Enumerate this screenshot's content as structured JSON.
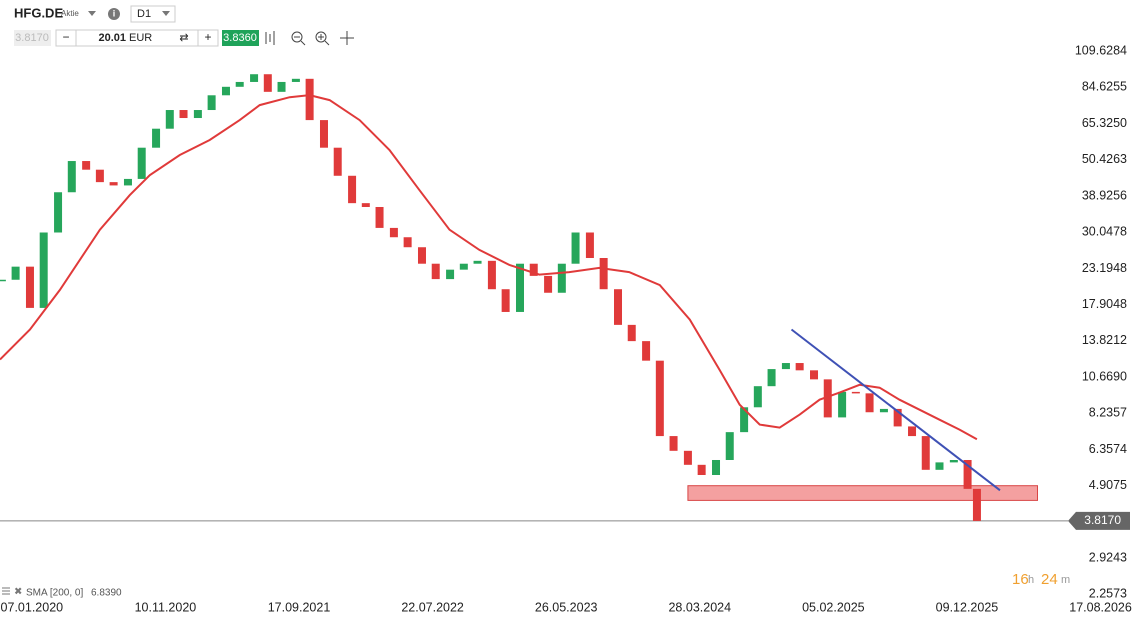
{
  "header": {
    "symbol": "HFG.DE",
    "kind": "Aktie",
    "timeframe": "D1",
    "bid": "3.8170",
    "volume": "20.01",
    "currency": "EUR",
    "ask": "3.8360"
  },
  "chart_data": {
    "type": "candlestick",
    "x": [
      -48,
      -26,
      -3,
      19,
      42,
      64,
      87,
      109,
      131,
      154,
      176,
      199,
      221,
      243,
      266,
      288,
      311,
      333,
      356,
      378,
      400,
      423,
      445,
      468,
      490,
      513,
      535,
      557,
      580,
      602,
      625,
      647,
      670,
      692,
      714,
      737,
      759,
      782,
      804,
      827,
      849,
      871,
      894,
      916,
      939,
      961,
      984,
      1006,
      1028,
      1051,
      1073,
      1096,
      1118,
      1141,
      1163,
      1185,
      1208,
      1230,
      1253,
      1275,
      1298,
      1320,
      1342,
      1365,
      1387,
      1410,
      1432,
      1454,
      1477,
      1499,
      1514
    ],
    "close": [
      21.4,
      23.5,
      17.5,
      30,
      40,
      50,
      47,
      43,
      42,
      44,
      55,
      63,
      72,
      68,
      72,
      80,
      85,
      88,
      93,
      82,
      88,
      90,
      67,
      55,
      45,
      37,
      36,
      31,
      29,
      27,
      24,
      21.5,
      23,
      24,
      24.5,
      20,
      17,
      24,
      22,
      19.5,
      24,
      30,
      25,
      20,
      15.5,
      13.8,
      12,
      7,
      6.3,
      5.7,
      5.3,
      5.9,
      7.2,
      8.6,
      10,
      11.3,
      11.8,
      11.2,
      10.5,
      8,
      9.6,
      9.5,
      8.3,
      8.5,
      7.5,
      7.0,
      5.5,
      5.8,
      5.9,
      4.8,
      3.817
    ],
    "up_color": "#26a65b",
    "down_color": "#e03a3a",
    "xlim": [
      -51,
      1772
    ],
    "xticks": [
      {
        "value": 0,
        "label": "07.01.2020"
      },
      {
        "value": 214,
        "label": "10.11.2020"
      },
      {
        "value": 428,
        "label": "17.09.2021"
      },
      {
        "value": 642,
        "label": "22.07.2022"
      },
      {
        "value": 856,
        "label": "26.05.2023"
      },
      {
        "value": 1070,
        "label": "28.03.2024"
      },
      {
        "value": 1284,
        "label": "05.02.2025"
      },
      {
        "value": 1498,
        "label": "09.12.2025"
      },
      {
        "value": 1712,
        "label": "17.08.2026"
      }
    ],
    "ylim": [
      2.2,
      140
    ],
    "log_scale": true,
    "yticks": [
      109.6284,
      84.6255,
      {
        "value": 65.325,
        "label": "65.3250"
      },
      50.4263,
      38.9256,
      30.0478,
      23.1948,
      17.9048,
      13.8212,
      {
        "value": 10.669,
        "label": "10.6690"
      },
      8.2357,
      6.3574,
      4.9075,
      2.9243,
      2.2573
    ],
    "sma": {
      "name": "SMA [200, 0]",
      "last": {
        "value": 6.839,
        "label": "6.8390"
      },
      "color": "#e03a3a",
      "x": [
        -51,
        -3,
        45,
        109,
        157,
        189,
        237,
        285,
        333,
        365,
        413,
        445,
        477,
        525,
        573,
        621,
        669,
        717,
        765,
        813,
        861,
        909,
        957,
        1006,
        1054,
        1102,
        1134,
        1166,
        1198,
        1230,
        1262,
        1294,
        1326,
        1358,
        1390,
        1422,
        1454,
        1486,
        1514
      ],
      "values": [
        12.1,
        15.0,
        19.9,
        30.6,
        39.2,
        45.2,
        52.2,
        58.1,
        67.0,
        74.6,
        78.9,
        80.1,
        77.3,
        67.0,
        54.1,
        40.6,
        30.6,
        26.5,
        23.8,
        22.2,
        22.6,
        23.3,
        22.6,
        20.6,
        16.1,
        11.2,
        8.76,
        7.6,
        7.44,
        8.16,
        9.08,
        9.55,
        10.1,
        9.89,
        9.08,
        8.45,
        7.87,
        7.33,
        6.839
      ]
    },
    "trendline": {
      "color": "#3f51b5",
      "x": [
        1217,
        1551
      ],
      "values": [
        15.0,
        4.75
      ]
    },
    "zone": {
      "color": "#f08080",
      "x": [
        1051,
        1611
      ],
      "values": [
        4.91,
        4.42
      ]
    },
    "current_price": {
      "value": 3.817,
      "label": "3.8170"
    },
    "timer": [
      "16",
      "h",
      "24",
      "m"
    ]
  }
}
